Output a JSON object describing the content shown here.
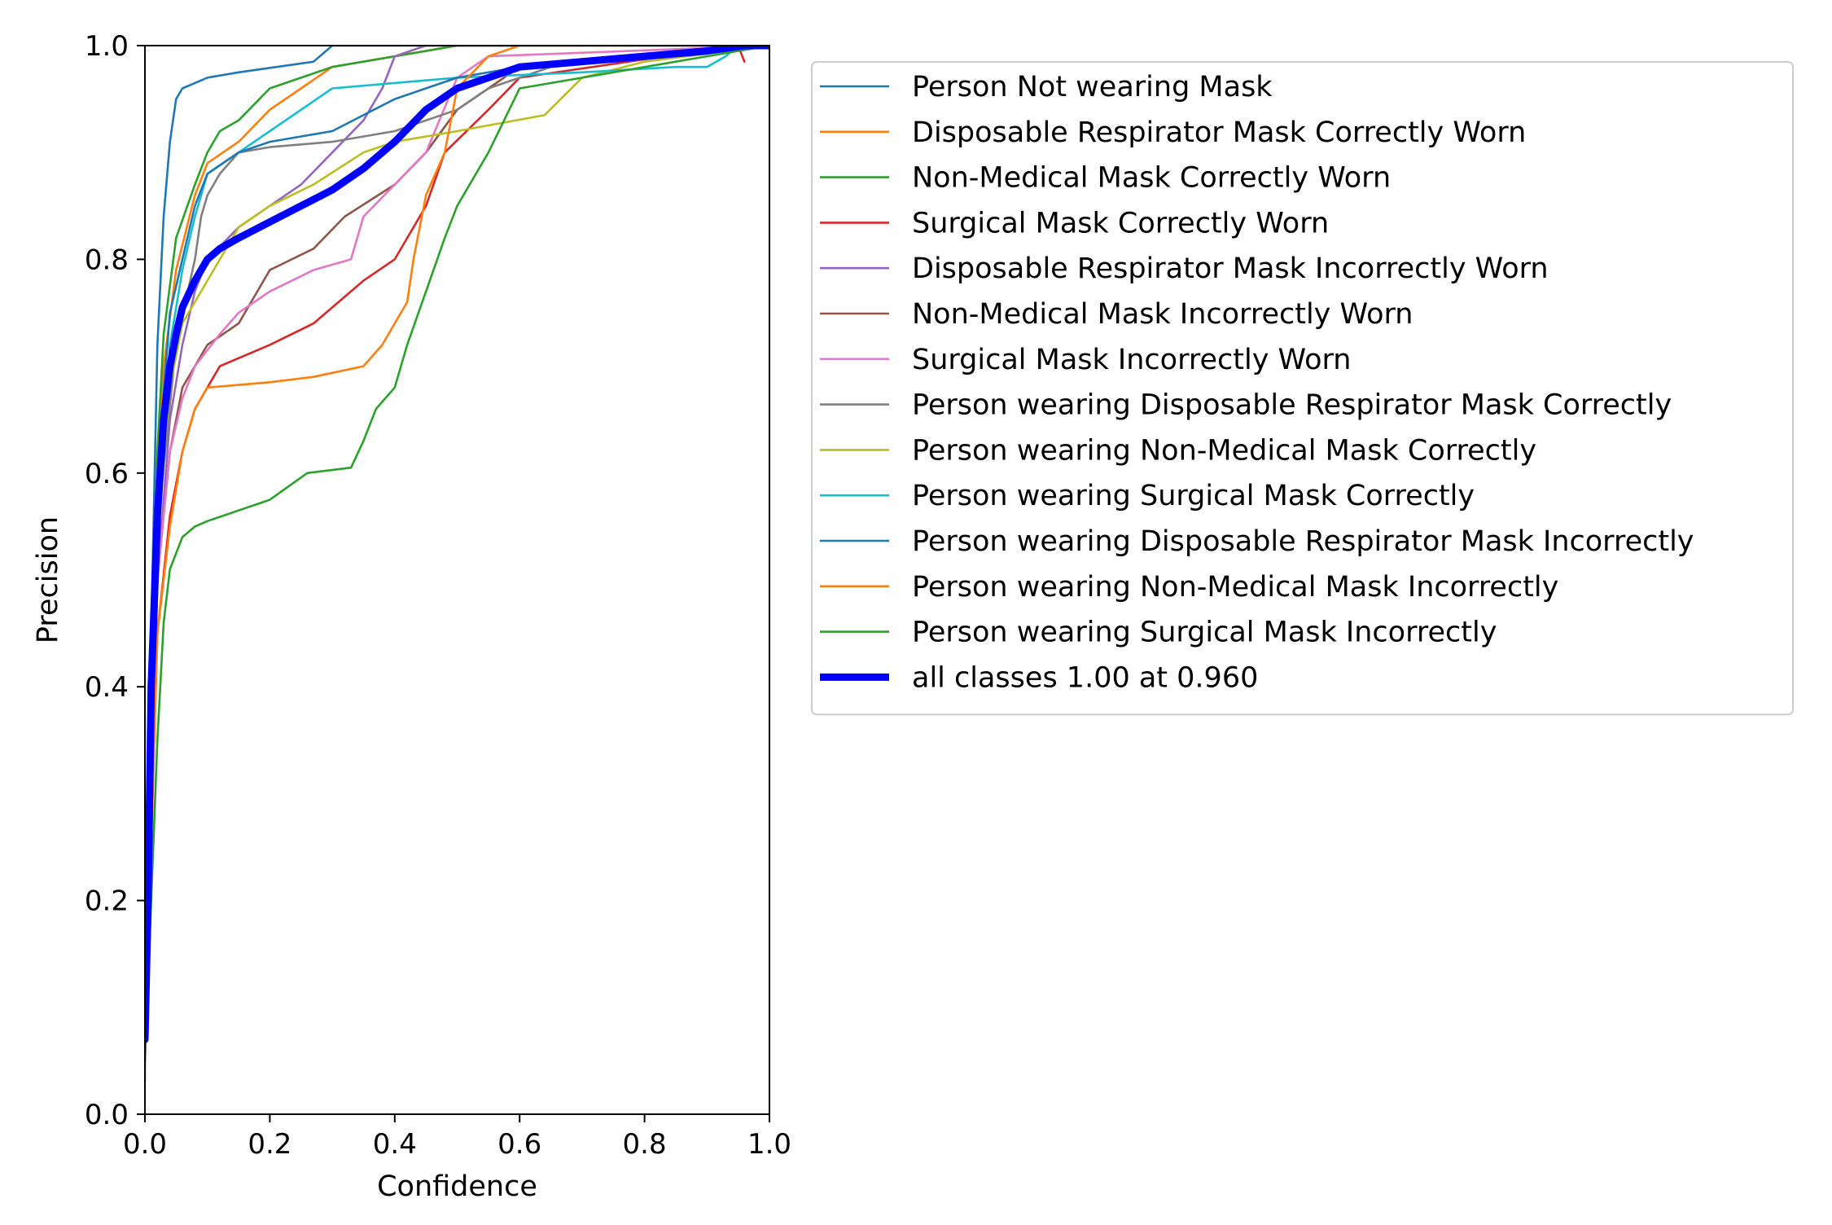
{
  "chart_data": {
    "type": "line",
    "title": "",
    "xlabel": "Confidence",
    "ylabel": "Precision",
    "xlim": [
      0,
      1
    ],
    "ylim": [
      0,
      1
    ],
    "xticks": [
      "0.0",
      "0.2",
      "0.4",
      "0.6",
      "0.8",
      "1.0"
    ],
    "yticks": [
      "0.0",
      "0.2",
      "0.4",
      "0.6",
      "0.8",
      "1.0"
    ],
    "grid": false,
    "legend_position": "outside-right-top",
    "series": [
      {
        "name": "Person Not wearing Mask",
        "color": "#1f77b4",
        "x": [
          0.0,
          0.01,
          0.02,
          0.03,
          0.04,
          0.05,
          0.06,
          0.08,
          0.1,
          0.15,
          0.27,
          0.3,
          0.4,
          0.6,
          1.0
        ],
        "y": [
          0.05,
          0.45,
          0.72,
          0.84,
          0.91,
          0.95,
          0.96,
          0.965,
          0.97,
          0.975,
          0.985,
          1.0,
          1.0,
          1.0,
          1.0
        ]
      },
      {
        "name": "Disposable Respirator Mask Correctly Worn",
        "color": "#ff7f0e",
        "x": [
          0.0,
          0.01,
          0.02,
          0.03,
          0.05,
          0.08,
          0.1,
          0.15,
          0.2,
          0.25,
          0.3,
          0.4,
          0.5,
          0.6,
          1.0
        ],
        "y": [
          0.06,
          0.35,
          0.58,
          0.7,
          0.79,
          0.86,
          0.89,
          0.91,
          0.94,
          0.96,
          0.98,
          0.99,
          1.0,
          1.0,
          1.0
        ]
      },
      {
        "name": "Non-Medical Mask Correctly Worn",
        "color": "#2ca02c",
        "x": [
          0.0,
          0.01,
          0.02,
          0.03,
          0.05,
          0.08,
          0.1,
          0.12,
          0.15,
          0.2,
          0.25,
          0.3,
          0.4,
          0.5,
          1.0
        ],
        "y": [
          0.06,
          0.4,
          0.62,
          0.73,
          0.82,
          0.87,
          0.9,
          0.92,
          0.93,
          0.96,
          0.97,
          0.98,
          0.99,
          1.0,
          1.0
        ]
      },
      {
        "name": "Surgical Mask Correctly Worn",
        "color": "#d62728",
        "x": [
          0.0,
          0.02,
          0.04,
          0.06,
          0.08,
          0.1,
          0.12,
          0.2,
          0.27,
          0.35,
          0.4,
          0.45,
          0.48,
          0.55,
          0.6,
          0.95,
          0.96
        ],
        "y": [
          0.06,
          0.45,
          0.56,
          0.62,
          0.66,
          0.68,
          0.7,
          0.72,
          0.74,
          0.78,
          0.8,
          0.85,
          0.9,
          0.94,
          0.97,
          1.0,
          0.985
        ]
      },
      {
        "name": "Disposable Respirator Mask Incorrectly Worn",
        "color": "#9467bd",
        "x": [
          0.0,
          0.02,
          0.04,
          0.06,
          0.08,
          0.1,
          0.15,
          0.2,
          0.25,
          0.3,
          0.35,
          0.38,
          0.4,
          0.45,
          0.5,
          1.0
        ],
        "y": [
          0.06,
          0.5,
          0.65,
          0.72,
          0.77,
          0.8,
          0.83,
          0.85,
          0.87,
          0.9,
          0.93,
          0.96,
          0.99,
          1.0,
          1.0,
          1.0
        ]
      },
      {
        "name": "Non-Medical Mask Incorrectly Worn",
        "color": "#8c564b",
        "x": [
          0.0,
          0.02,
          0.04,
          0.06,
          0.1,
          0.15,
          0.2,
          0.27,
          0.32,
          0.4,
          0.45,
          0.5,
          0.55,
          0.6,
          1.0
        ],
        "y": [
          0.06,
          0.5,
          0.62,
          0.68,
          0.72,
          0.74,
          0.79,
          0.81,
          0.84,
          0.87,
          0.9,
          0.94,
          0.96,
          0.98,
          1.0
        ]
      },
      {
        "name": "Surgical Mask Incorrectly Worn",
        "color": "#e377c2",
        "x": [
          0.0,
          0.02,
          0.04,
          0.06,
          0.08,
          0.12,
          0.15,
          0.2,
          0.27,
          0.33,
          0.35,
          0.4,
          0.45,
          0.5,
          0.55,
          1.0
        ],
        "y": [
          0.06,
          0.5,
          0.62,
          0.67,
          0.7,
          0.73,
          0.75,
          0.77,
          0.79,
          0.8,
          0.84,
          0.87,
          0.9,
          0.97,
          0.99,
          1.0
        ]
      },
      {
        "name": "Person wearing Disposable Respirator Mask Correctly",
        "color": "#7f7f7f",
        "x": [
          0.0,
          0.02,
          0.05,
          0.08,
          0.09,
          0.1,
          0.12,
          0.15,
          0.2,
          0.3,
          0.4,
          0.5,
          0.55,
          0.65,
          1.0
        ],
        "y": [
          0.05,
          0.55,
          0.72,
          0.8,
          0.84,
          0.86,
          0.88,
          0.9,
          0.905,
          0.91,
          0.92,
          0.94,
          0.96,
          0.98,
          1.0
        ]
      },
      {
        "name": "Person wearing Non-Medical Mask Correctly",
        "color": "#bcbd22",
        "x": [
          0.0,
          0.005,
          0.02,
          0.04,
          0.06,
          0.1,
          0.15,
          0.2,
          0.27,
          0.35,
          0.4,
          0.5,
          0.64,
          0.7,
          0.8,
          1.0
        ],
        "y": [
          0.03,
          0.3,
          0.55,
          0.68,
          0.74,
          0.78,
          0.83,
          0.85,
          0.87,
          0.9,
          0.91,
          0.92,
          0.935,
          0.97,
          0.985,
          1.0
        ]
      },
      {
        "name": "Person wearing Surgical Mask Correctly",
        "color": "#17becf",
        "x": [
          0.0,
          0.02,
          0.04,
          0.06,
          0.08,
          0.1,
          0.15,
          0.2,
          0.3,
          0.4,
          0.5,
          0.7,
          0.85,
          0.9,
          0.93,
          0.95
        ],
        "y": [
          0.06,
          0.55,
          0.72,
          0.79,
          0.84,
          0.88,
          0.9,
          0.92,
          0.96,
          0.965,
          0.97,
          0.975,
          0.98,
          0.98,
          0.99,
          1.0
        ]
      },
      {
        "name": "Person wearing Disposable Respirator Mask Incorrectly",
        "color": "#1f77b4",
        "x": [
          0.0,
          0.02,
          0.04,
          0.06,
          0.08,
          0.1,
          0.15,
          0.2,
          0.3,
          0.4,
          0.5,
          0.6,
          0.8,
          1.0
        ],
        "y": [
          0.06,
          0.6,
          0.75,
          0.8,
          0.85,
          0.88,
          0.9,
          0.91,
          0.92,
          0.95,
          0.97,
          0.98,
          0.99,
          1.0
        ]
      },
      {
        "name": "Person wearing Non-Medical Mask Incorrectly",
        "color": "#ff7f0e",
        "x": [
          0.0,
          0.02,
          0.04,
          0.06,
          0.08,
          0.1,
          0.2,
          0.27,
          0.35,
          0.38,
          0.4,
          0.42,
          0.43,
          0.45,
          0.48,
          0.5,
          0.55,
          0.6,
          1.0
        ],
        "y": [
          0.05,
          0.45,
          0.55,
          0.62,
          0.66,
          0.68,
          0.685,
          0.69,
          0.7,
          0.72,
          0.74,
          0.76,
          0.8,
          0.86,
          0.9,
          0.96,
          0.99,
          1.0,
          1.0
        ]
      },
      {
        "name": "Person wearing Surgical Mask Incorrectly",
        "color": "#2ca02c",
        "x": [
          0.0,
          0.01,
          0.02,
          0.03,
          0.04,
          0.06,
          0.08,
          0.1,
          0.15,
          0.2,
          0.26,
          0.33,
          0.35,
          0.37,
          0.4,
          0.42,
          0.45,
          0.48,
          0.5,
          0.55,
          0.6,
          1.0
        ],
        "y": [
          0.05,
          0.2,
          0.35,
          0.46,
          0.51,
          0.54,
          0.55,
          0.555,
          0.565,
          0.575,
          0.6,
          0.605,
          0.63,
          0.66,
          0.68,
          0.72,
          0.77,
          0.82,
          0.85,
          0.9,
          0.96,
          1.0
        ]
      },
      {
        "name": "all classes 1.00 at 0.960",
        "color": "#0000ff",
        "bold": true,
        "x": [
          0.0,
          0.005,
          0.01,
          0.02,
          0.03,
          0.04,
          0.05,
          0.06,
          0.08,
          0.1,
          0.12,
          0.15,
          0.2,
          0.25,
          0.3,
          0.35,
          0.4,
          0.45,
          0.5,
          0.55,
          0.6,
          0.7,
          0.8,
          0.9,
          0.96,
          1.0
        ],
        "y": [
          0.07,
          0.2,
          0.4,
          0.56,
          0.65,
          0.7,
          0.73,
          0.755,
          0.78,
          0.8,
          0.81,
          0.82,
          0.835,
          0.85,
          0.865,
          0.885,
          0.91,
          0.94,
          0.96,
          0.97,
          0.98,
          0.985,
          0.99,
          0.995,
          1.0,
          1.0
        ]
      }
    ]
  }
}
